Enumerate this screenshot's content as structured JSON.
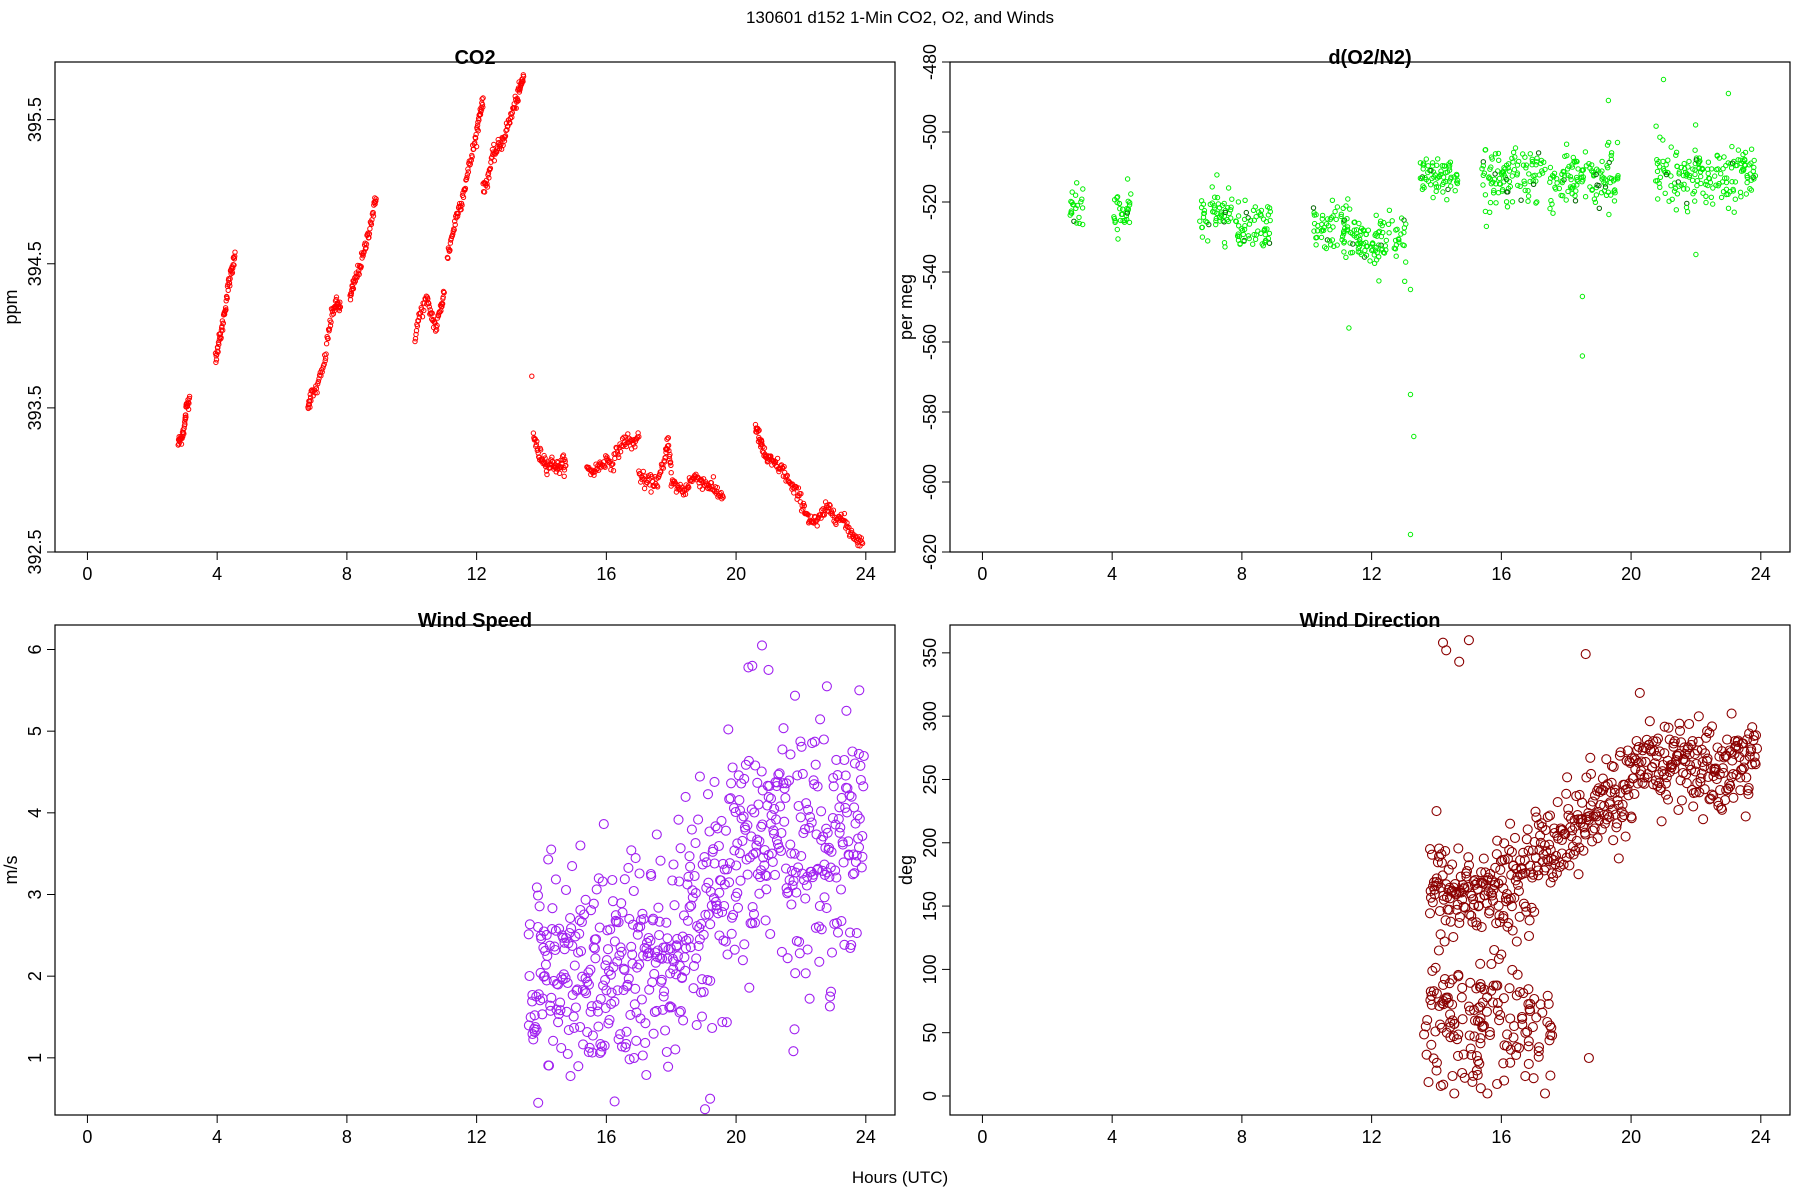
{
  "page": {
    "title": "130601   d152   1-Min CO2, O2, and Winds",
    "xlabel": "Hours (UTC)"
  },
  "chart_data": [
    {
      "id": "co2",
      "type": "scatter",
      "title": "CO2",
      "xlabel": "",
      "ylabel": "ppm",
      "xlim": [
        -1,
        24.9
      ],
      "ylim": [
        392.5,
        395.9
      ],
      "xticks": [
        0,
        4,
        8,
        12,
        16,
        20,
        24
      ],
      "yticks": [
        392.5,
        393.5,
        394.5,
        395.5
      ],
      "color": "#ff0000",
      "marker": "small-circle",
      "series": [
        {
          "segments": [
            {
              "x": [
                2.8,
                2.9,
                3.0,
                3.05,
                3.15
              ],
              "y": [
                393.25,
                393.3,
                393.38,
                393.5,
                393.58
              ]
            },
            {
              "x": [
                3.95,
                4.05,
                4.15,
                4.25,
                4.35,
                4.45,
                4.55
              ],
              "y": [
                393.85,
                393.95,
                394.05,
                394.2,
                394.35,
                394.45,
                394.58
              ]
            },
            {
              "x": [
                6.8,
                6.9,
                7.1,
                7.3,
                7.45,
                7.6,
                7.7,
                7.8
              ],
              "y": [
                393.52,
                393.58,
                393.65,
                393.8,
                394.05,
                394.2,
                394.22,
                394.2
              ]
            },
            {
              "x": [
                8.1,
                8.2,
                8.35,
                8.5,
                8.65,
                8.8,
                8.9
              ],
              "y": [
                394.25,
                394.35,
                394.45,
                394.55,
                394.7,
                394.85,
                394.95
              ]
            },
            {
              "x": [
                10.1,
                10.25,
                10.45,
                10.6,
                10.75,
                10.9,
                11.0
              ],
              "y": [
                394.0,
                394.15,
                394.25,
                394.15,
                394.05,
                394.2,
                394.3
              ]
            },
            {
              "x": [
                11.1,
                11.25,
                11.4,
                11.55,
                11.7,
                11.85,
                12.0,
                12.1,
                12.2
              ],
              "y": [
                394.55,
                394.7,
                394.85,
                394.95,
                395.1,
                395.25,
                395.4,
                395.55,
                395.65
              ]
            },
            {
              "x": [
                12.2,
                12.35,
                12.5,
                12.65,
                12.8,
                12.95,
                13.1,
                13.25,
                13.35,
                13.45
              ],
              "y": [
                395.0,
                395.1,
                395.25,
                395.3,
                395.35,
                395.45,
                395.55,
                395.65,
                395.72,
                395.8
              ]
            },
            {
              "x": [
                13.7
              ],
              "y": [
                393.72
              ]
            },
            {
              "x": [
                13.75,
                13.9,
                14.05,
                14.2,
                14.35,
                14.5,
                14.65,
                14.75
              ],
              "y": [
                393.33,
                393.18,
                393.15,
                393.1,
                393.12,
                393.08,
                393.12,
                393.1
              ]
            },
            {
              "x": [
                15.4,
                15.6,
                15.8,
                16.0,
                16.2,
                16.4,
                16.6,
                16.8,
                17.0
              ],
              "y": [
                393.07,
                393.06,
                393.1,
                393.14,
                393.12,
                393.22,
                393.28,
                393.25,
                393.3
              ]
            },
            {
              "x": [
                17.0,
                17.2,
                17.4,
                17.6,
                17.8,
                17.9,
                18.0
              ],
              "y": [
                393.05,
                392.98,
                392.98,
                393.0,
                393.12,
                393.3,
                393.05
              ]
            },
            {
              "x": [
                18.0,
                18.2,
                18.4,
                18.6,
                18.8,
                19.0,
                19.2,
                19.4,
                19.6
              ],
              "y": [
                392.98,
                392.95,
                392.92,
                393.0,
                393.02,
                392.98,
                392.96,
                392.92,
                392.88
              ]
            },
            {
              "x": [
                20.6,
                20.7,
                20.8,
                20.95,
                21.1,
                21.3,
                21.5,
                21.7,
                21.9,
                22.1
              ],
              "y": [
                393.38,
                393.3,
                393.22,
                393.15,
                393.12,
                393.1,
                393.05,
                392.95,
                392.9,
                392.82
              ]
            },
            {
              "x": [
                22.1,
                22.3,
                22.5,
                22.7,
                22.9,
                23.1,
                23.3,
                23.5,
                23.7,
                23.9
              ],
              "y": [
                392.8,
                392.72,
                392.7,
                392.78,
                392.8,
                392.75,
                392.72,
                392.65,
                392.6,
                392.56
              ]
            }
          ]
        }
      ]
    },
    {
      "id": "o2n2",
      "type": "scatter",
      "title": "d(O2/N2)",
      "xlabel": "",
      "ylabel": "per meg",
      "xlim": [
        -1,
        24.9
      ],
      "ylim": [
        -620,
        -480
      ],
      "xticks": [
        0,
        4,
        8,
        12,
        16,
        20,
        24
      ],
      "yticks": [
        -620,
        -600,
        -580,
        -560,
        -540,
        -520,
        -500,
        -480
      ],
      "color": "#00ee00",
      "marker": "small-circle",
      "series": [
        {
          "clusters": [
            {
              "x0": 2.7,
              "x1": 3.1,
              "center": -522,
              "spread": 5
            },
            {
              "x0": 4.0,
              "x1": 4.6,
              "center": -523,
              "spread": 6
            },
            {
              "x0": 6.7,
              "x1": 7.7,
              "center": -524,
              "spread": 7
            },
            {
              "x0": 7.8,
              "x1": 8.9,
              "center": -527,
              "spread": 6
            },
            {
              "x0": 10.2,
              "x1": 11.3,
              "center": -527,
              "spread": 7
            },
            {
              "x0": 11.3,
              "x1": 13.1,
              "center": -531,
              "spread": 7
            },
            {
              "x0": 13.5,
              "x1": 14.7,
              "center": -512,
              "spread": 5
            },
            {
              "x0": 15.4,
              "x1": 19.6,
              "center": -513,
              "spread": 7
            },
            {
              "x0": 20.7,
              "x1": 23.9,
              "center": -512,
              "spread": 7
            }
          ],
          "outliers": [
            {
              "x": 13.2,
              "y": -615
            },
            {
              "x": 13.3,
              "y": -587
            },
            {
              "x": 13.2,
              "y": -575
            },
            {
              "x": 11.3,
              "y": -556
            },
            {
              "x": 13.2,
              "y": -545
            },
            {
              "x": 18.5,
              "y": -564
            },
            {
              "x": 18.5,
              "y": -547
            },
            {
              "x": 19.3,
              "y": -491
            },
            {
              "x": 21.0,
              "y": -485
            },
            {
              "x": 23.0,
              "y": -489
            },
            {
              "x": 22.0,
              "y": -535
            }
          ]
        }
      ]
    },
    {
      "id": "wspd",
      "type": "scatter",
      "title": "Wind Speed",
      "xlabel": "",
      "ylabel": "m/s",
      "xlim": [
        -1,
        24.9
      ],
      "ylim": [
        0.3,
        6.3
      ],
      "xticks": [
        0,
        4,
        8,
        12,
        16,
        20,
        24
      ],
      "yticks": [
        1,
        2,
        3,
        4,
        5,
        6
      ],
      "color": "#a020f0",
      "marker": "circle",
      "series": [
        {
          "x_range": [
            13.6,
            23.95
          ],
          "trend": [
            [
              13.6,
              1.7
            ],
            [
              15.0,
              1.9
            ],
            [
              16.0,
              2.0
            ],
            [
              17.0,
              2.1
            ],
            [
              18.0,
              2.2
            ],
            [
              19.0,
              2.6
            ],
            [
              20.0,
              3.2
            ],
            [
              21.0,
              3.8
            ],
            [
              22.0,
              3.5
            ],
            [
              23.0,
              3.6
            ],
            [
              23.95,
              3.9
            ]
          ],
          "spread": 0.75,
          "highlights": [
            {
              "x": 13.9,
              "y": 0.45
            },
            {
              "x": 14.3,
              "y": 3.55
            },
            {
              "x": 15.2,
              "y": 3.6
            },
            {
              "x": 20.8,
              "y": 6.05
            },
            {
              "x": 21.0,
              "y": 5.75
            },
            {
              "x": 20.5,
              "y": 5.8
            },
            {
              "x": 22.8,
              "y": 5.55
            },
            {
              "x": 23.4,
              "y": 5.25
            },
            {
              "x": 23.8,
              "y": 5.5
            },
            {
              "x": 21.8,
              "y": 1.35
            },
            {
              "x": 22.9,
              "y": 1.75
            },
            {
              "x": 19.2,
              "y": 0.5
            }
          ]
        }
      ]
    },
    {
      "id": "wdir",
      "type": "scatter",
      "title": "Wind Direction",
      "xlabel": "",
      "ylabel": "deg",
      "xlim": [
        -1,
        24.9
      ],
      "ylim": [
        -15,
        372
      ],
      "xticks": [
        0,
        4,
        8,
        12,
        16,
        20,
        24
      ],
      "yticks": [
        0,
        50,
        100,
        150,
        200,
        250,
        300,
        350
      ],
      "color": "#8b0000",
      "marker": "circle",
      "series": [
        {
          "low_cluster": {
            "x0": 13.6,
            "x1": 17.6,
            "center": 65,
            "spread": 40
          },
          "rising_band": {
            "points": [
              [
                13.8,
                165
              ],
              [
                15.5,
                160
              ],
              [
                16.5,
                170
              ],
              [
                17.5,
                200
              ],
              [
                18.5,
                215
              ],
              [
                19.5,
                235
              ],
              [
                20.5,
                260
              ],
              [
                21.5,
                265
              ],
              [
                22.5,
                255
              ],
              [
                23.9,
                265
              ]
            ],
            "spread": 18
          },
          "highlights": [
            {
              "x": 14.2,
              "y": 358
            },
            {
              "x": 14.3,
              "y": 352
            },
            {
              "x": 14.7,
              "y": 343
            },
            {
              "x": 15.0,
              "y": 360
            },
            {
              "x": 18.6,
              "y": 349
            },
            {
              "x": 18.7,
              "y": 30
            },
            {
              "x": 23.1,
              "y": 302
            },
            {
              "x": 13.8,
              "y": 195
            },
            {
              "x": 14.0,
              "y": 225
            }
          ]
        }
      ]
    }
  ]
}
